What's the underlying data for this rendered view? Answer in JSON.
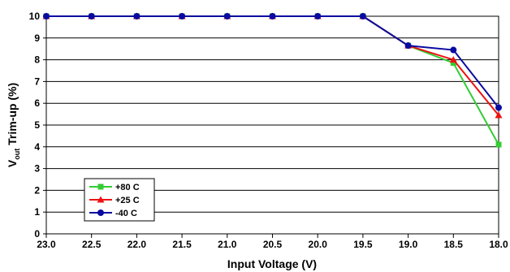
{
  "chart_data": {
    "type": "line",
    "xlabel": "Input Voltage (V)",
    "ylabel_main": "V",
    "ylabel_sub": "out",
    "ylabel_rest": " Trim-up (%)",
    "x": [
      23.0,
      22.5,
      22.0,
      21.5,
      21.0,
      20.5,
      20.0,
      19.5,
      19.0,
      18.5,
      18.0
    ],
    "x_tick_labels": [
      "23.0",
      "22.5",
      "22.0",
      "21.5",
      "21.0",
      "20.5",
      "20.0",
      "19.5",
      "19.0",
      "18.5",
      "18.0"
    ],
    "y_tick_labels": [
      "0",
      "1",
      "2",
      "3",
      "4",
      "5",
      "6",
      "7",
      "8",
      "9",
      "10"
    ],
    "xlim": [
      23.0,
      18.0
    ],
    "ylim": [
      0,
      10
    ],
    "grid": "horizontal",
    "legend_position": "bottom-left",
    "series": [
      {
        "name": "+80 C",
        "color": "#33cc33",
        "marker": "square",
        "values": [
          10,
          10,
          10,
          10,
          10,
          10,
          10,
          10,
          8.65,
          7.85,
          4.1
        ]
      },
      {
        "name": "+25 C",
        "color": "#ee1111",
        "marker": "triangle",
        "values": [
          10,
          10,
          10,
          10,
          10,
          10,
          10,
          10,
          8.65,
          8.0,
          5.45
        ]
      },
      {
        "name": "-40 C",
        "color": "#0a0aa0",
        "marker": "circle",
        "values": [
          10,
          10,
          10,
          10,
          10,
          10,
          10,
          10,
          8.65,
          8.45,
          5.8
        ]
      }
    ]
  }
}
